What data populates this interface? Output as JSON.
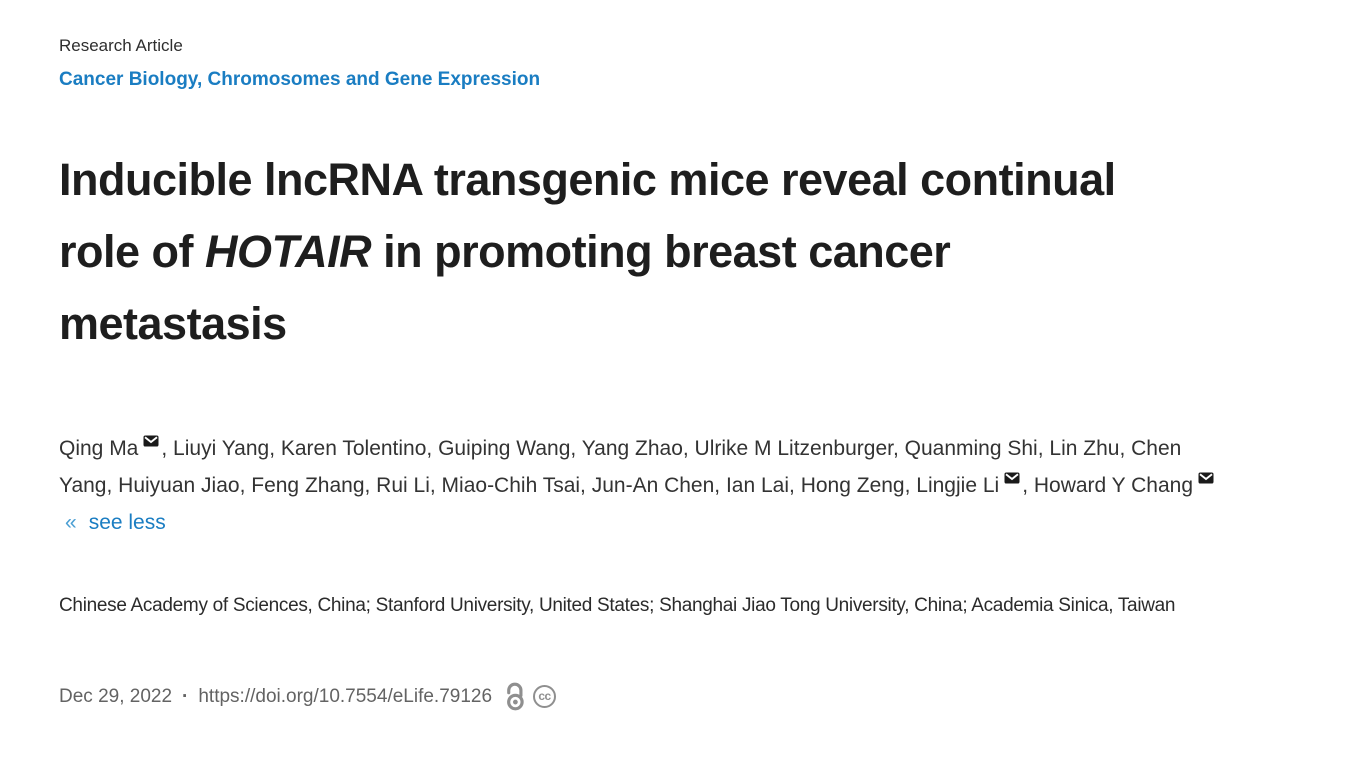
{
  "colors": {
    "link_blue": "#1a7dc2",
    "title_text": "#1e1e1e",
    "body_text": "#333333",
    "muted_gray": "#636363",
    "icon_gray": "#8f8f8f",
    "envelope_black": "#1a1a1a"
  },
  "header": {
    "article_type": "Research Article",
    "subject_areas": "Cancer Biology, Chromosomes and Gene Expression"
  },
  "title": {
    "pre": "Inducible lncRNA transgenic mice reveal continual role of ",
    "italic": "HOTAIR",
    "post": " in promoting breast cancer metastasis"
  },
  "authors": {
    "separator": ", ",
    "list": [
      {
        "name": "Qing Ma",
        "email": true
      },
      {
        "name": "Liuyi Yang",
        "email": false
      },
      {
        "name": "Karen Tolentino",
        "email": false
      },
      {
        "name": "Guiping Wang",
        "email": false
      },
      {
        "name": "Yang Zhao",
        "email": false
      },
      {
        "name": "Ulrike M Litzenburger",
        "email": false
      },
      {
        "name": "Quanming Shi",
        "email": false
      },
      {
        "name": "Lin Zhu",
        "email": false
      },
      {
        "name": "Chen Yang",
        "email": false
      },
      {
        "name": "Huiyuan Jiao",
        "email": false
      },
      {
        "name": "Feng Zhang",
        "email": false
      },
      {
        "name": "Rui Li",
        "email": false
      },
      {
        "name": "Miao-Chih Tsai",
        "email": false
      },
      {
        "name": "Jun-An Chen",
        "email": false
      },
      {
        "name": "Ian Lai",
        "email": false
      },
      {
        "name": "Hong Zeng",
        "email": false
      },
      {
        "name": "Lingjie Li",
        "email": true
      },
      {
        "name": "Howard Y Chang",
        "email": true
      }
    ],
    "collapse": {
      "arrow": "«",
      "label": "see less"
    }
  },
  "affiliations": "Chinese Academy of Sciences, China; Stanford University, United States; Shanghai Jiao Tong University, China; Academia Sinica, Taiwan",
  "meta": {
    "date": "Dec 29, 2022",
    "separator": "·",
    "doi": "https://doi.org/10.7554/eLife.79126",
    "cc_label": "cc"
  }
}
